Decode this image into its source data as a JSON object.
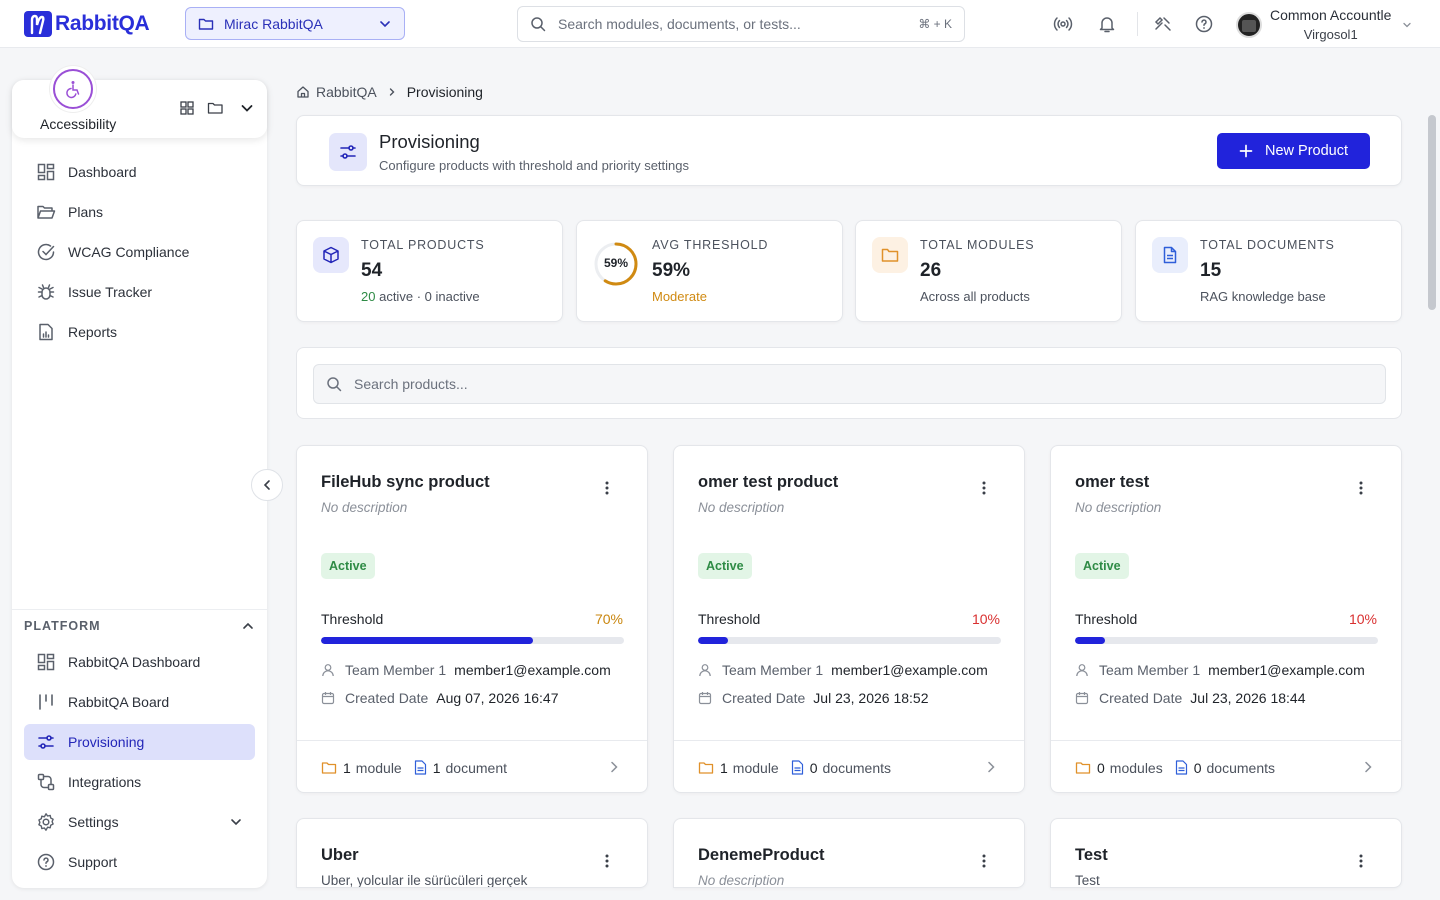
{
  "brand": {
    "name": "RabbitQA",
    "color": "#2a2fd9"
  },
  "workspace": {
    "label": "Mirac RabbitQA",
    "icon": "folder-icon"
  },
  "global_search": {
    "placeholder": "Search modules, documents, or tests...",
    "shortcut": "⌘ + K"
  },
  "user": {
    "name": "Common Accountle",
    "org": "Virgosol1"
  },
  "context": {
    "label": "Accessibility",
    "icon": "wheelchair-icon"
  },
  "nav": {
    "items": [
      {
        "label": "Dashboard",
        "icon": "grid-icon"
      },
      {
        "label": "Plans",
        "icon": "folder-open-icon"
      },
      {
        "label": "WCAG Compliance",
        "icon": "check-circle-icon"
      },
      {
        "label": "Issue Tracker",
        "icon": "bug-icon"
      },
      {
        "label": "Reports",
        "icon": "report-icon"
      }
    ],
    "platform_label": "PLATFORM",
    "platform_items": [
      {
        "label": "RabbitQA Dashboard",
        "icon": "grid-icon"
      },
      {
        "label": "RabbitQA Board",
        "icon": "board-icon"
      },
      {
        "label": "Provisioning",
        "icon": "sliders-icon",
        "active": true
      },
      {
        "label": "Integrations",
        "icon": "integrations-icon"
      },
      {
        "label": "Settings",
        "icon": "gear-icon"
      },
      {
        "label": "Support",
        "icon": "help-icon"
      }
    ]
  },
  "breadcrumb": {
    "root": "RabbitQA",
    "current": "Provisioning"
  },
  "header": {
    "title": "Provisioning",
    "subtitle": "Configure products with threshold and priority settings",
    "new_button": "New Product"
  },
  "stats": {
    "total_products": {
      "label": "TOTAL PRODUCTS",
      "value": "54",
      "active": "20",
      "active_label": "active",
      "sep": "·",
      "inactive": "0 inactive"
    },
    "avg_threshold": {
      "label": "AVG THRESHOLD",
      "value": "59%",
      "ring": "59%",
      "ring_fraction": 0.59,
      "sub": "Moderate",
      "color": "#d08a12"
    },
    "total_modules": {
      "label": "TOTAL MODULES",
      "value": "26",
      "sub": "Across all products"
    },
    "total_documents": {
      "label": "TOTAL DOCUMENTS",
      "value": "15",
      "sub": "RAG knowledge base"
    }
  },
  "product_search": {
    "placeholder": "Search products..."
  },
  "labels": {
    "threshold": "Threshold",
    "team_member": "Team Member 1",
    "created": "Created Date"
  },
  "products": [
    {
      "title": "FileHub sync product",
      "desc": "No description",
      "status": "Active",
      "threshold": "70%",
      "threshold_fraction": 0.7,
      "threshold_color": "#c9860e",
      "member": "member1@example.com",
      "created": "Aug 07, 2026 16:47",
      "modules_n": "1",
      "modules_label": "module",
      "docs_n": "1",
      "docs_label": "document"
    },
    {
      "title": "omer test product",
      "desc": "No description",
      "status": "Active",
      "threshold": "10%",
      "threshold_fraction": 0.1,
      "threshold_color": "#d93030",
      "member": "member1@example.com",
      "created": "Jul 23, 2026 18:52",
      "modules_n": "1",
      "modules_label": "module",
      "docs_n": "0",
      "docs_label": "documents"
    },
    {
      "title": "omer test",
      "desc": "No description",
      "status": "Active",
      "threshold": "10%",
      "threshold_fraction": 0.1,
      "threshold_color": "#d93030",
      "member": "member1@example.com",
      "created": "Jul 23, 2026 18:44",
      "modules_n": "0",
      "modules_label": "modules",
      "docs_n": "0",
      "docs_label": "documents"
    },
    {
      "title": "Uber",
      "desc": "Uber, yolcular ile sürücüleri gerçek"
    },
    {
      "title": "DenemeProduct",
      "desc": "No description"
    },
    {
      "title": "Test",
      "desc": "Test"
    }
  ]
}
